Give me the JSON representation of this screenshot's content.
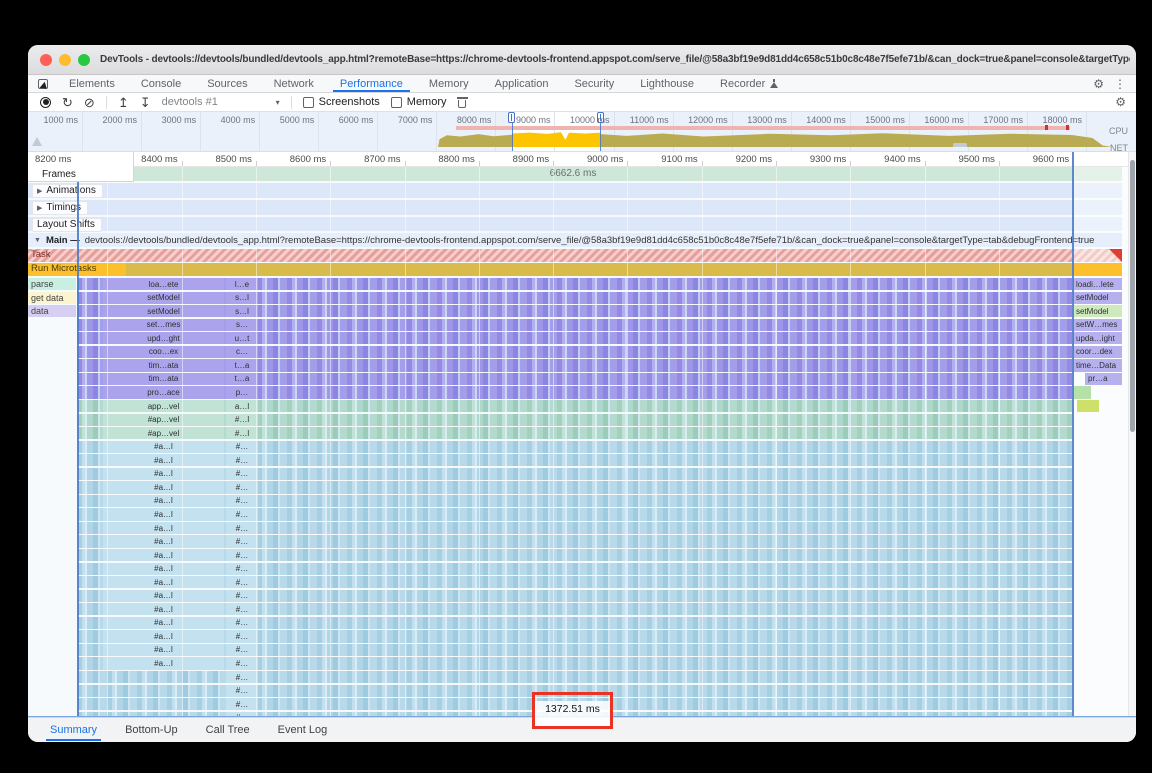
{
  "window": {
    "title": "DevTools - devtools://devtools/bundled/devtools_app.html?remoteBase=https://chrome-devtools-frontend.appspot.com/serve_file/@58a3bf19e9d81dd4c658c51b0c8c48e7f5efe71b/&can_dock=true&panel=console&targetType=tab&debugFrontend=true"
  },
  "tabs": {
    "items": [
      {
        "label": "Elements"
      },
      {
        "label": "Console"
      },
      {
        "label": "Sources"
      },
      {
        "label": "Network"
      },
      {
        "label": "Performance",
        "active": true
      },
      {
        "label": "Memory"
      },
      {
        "label": "Application"
      },
      {
        "label": "Security"
      },
      {
        "label": "Lighthouse"
      },
      {
        "label": "Recorder",
        "flask": true
      }
    ]
  },
  "toolbar": {
    "profile": "devtools #1",
    "screenshots_label": "Screenshots",
    "memory_label": "Memory"
  },
  "overview": {
    "tick_labels": [
      "1000 ms",
      "2000 ms",
      "3000 ms",
      "4000 ms",
      "5000 ms",
      "6000 ms",
      "7000 ms",
      "8000 ms",
      "9000 ms",
      "10000 ms",
      "11000 ms",
      "12000 ms",
      "13000 ms",
      "14000 ms",
      "15000 ms",
      "16000 ms",
      "17000 ms",
      "18000 ms"
    ],
    "lane_labels": [
      "CPU",
      "NET"
    ]
  },
  "ruler": {
    "labels": [
      "8200 ms",
      "8300 ms",
      "8400 ms",
      "8500 ms",
      "8600 ms",
      "8700 ms",
      "8800 ms",
      "8900 ms",
      "9000 ms",
      "9100 ms",
      "9200 ms",
      "9300 ms",
      "9400 ms",
      "9500 ms",
      "9600 ms"
    ]
  },
  "tracks": {
    "frames_label": "Frames",
    "frames_value": "6662.6 ms",
    "animations_label": "Animations",
    "timings_label": "Timings",
    "layout_shifts_label": "Layout Shifts",
    "main_label": "Main —",
    "main_url": "devtools://devtools/bundled/devtools_app.html?remoteBase=https://chrome-devtools-frontend.appspot.com/serve_file/@58a3bf19e9d81dd4c658c51b0c8c48e7f5efe71b/&can_dock=true&panel=console&targetType=tab&debugFrontend=true"
  },
  "flame": {
    "task_label": "Task",
    "microtasks_label": "Run Microtasks",
    "markers": [
      {
        "label": "parse",
        "bg": "#c9efe1"
      },
      {
        "label": "get data",
        "bg": "#fbf4d0"
      },
      {
        "label": "data",
        "bg": "#d6cff2"
      }
    ],
    "rows": [
      {
        "c1": "loa…ete",
        "c2": "l…e",
        "right": "loadi…lete",
        "p": "purple"
      },
      {
        "c1": "setModel",
        "c2": "s…l",
        "right": "setModel",
        "p": "purple"
      },
      {
        "c1": "setModel",
        "c2": "s…l",
        "right": "setModel",
        "right_green": true,
        "p": "purple"
      },
      {
        "c1": "set…mes",
        "c2": "s…",
        "right": "setW…mes",
        "p": "purple"
      },
      {
        "c1": "upd…ght",
        "c2": "u…t",
        "right": "upda…ight",
        "p": "purple"
      },
      {
        "c1": "coo…ex",
        "c2": "c…",
        "right": "coor…dex",
        "p": "purple"
      },
      {
        "c1": "tim…ata",
        "c2": "t…a",
        "right": "time…Data",
        "p": "purple"
      },
      {
        "c1": "tim…ata",
        "c2": "t…a",
        "right": "pr…a",
        "right_indent": true,
        "p": "purple"
      },
      {
        "c1": "pro…ace",
        "c2": "p…",
        "right_bar": "green",
        "p": "purple"
      },
      {
        "c1": "app…vel",
        "c2": "a…l",
        "right_bar": "lime",
        "p": "green"
      },
      {
        "c1": "#ap…vel",
        "c2": "#…l",
        "p": "green"
      },
      {
        "c1": "#ap…vel",
        "c2": "#…l",
        "p": "green"
      },
      {
        "c1": "#a…l",
        "c2": "#…",
        "p": "teal"
      },
      {
        "c1": "#a…l",
        "c2": "#…",
        "p": "teal"
      },
      {
        "c1": "#a…l",
        "c2": "#…",
        "p": "teal"
      },
      {
        "c1": "#a…l",
        "c2": "#…",
        "p": "teal"
      },
      {
        "c1": "#a…l",
        "c2": "#…",
        "p": "teal"
      },
      {
        "c1": "#a…l",
        "c2": "#…",
        "p": "teal"
      },
      {
        "c1": "#a…l",
        "c2": "#…",
        "p": "teal"
      },
      {
        "c1": "#a…l",
        "c2": "#…",
        "p": "teal"
      },
      {
        "c1": "#a…l",
        "c2": "#…",
        "p": "teal"
      },
      {
        "c1": "#a…l",
        "c2": "#…",
        "p": "teal"
      },
      {
        "c1": "#a…l",
        "c2": "#…",
        "p": "teal"
      },
      {
        "c1": "#a…l",
        "c2": "#…",
        "p": "teal"
      },
      {
        "c1": "#a…l",
        "c2": "#…",
        "p": "teal"
      },
      {
        "c1": "#a…l",
        "c2": "#…",
        "p": "teal"
      },
      {
        "c1": "#a…l",
        "c2": "#…",
        "p": "teal"
      },
      {
        "c1": "#a…l",
        "c2": "#…",
        "p": "teal"
      },
      {
        "c1": "#a…l",
        "c2": "#…",
        "p": "teal"
      },
      {
        "c2": "#…",
        "p": "teal"
      },
      {
        "c2": "#…",
        "p": "teal"
      },
      {
        "c2": "#…",
        "p": "teal"
      },
      {
        "c2": "#…",
        "p": "teal"
      }
    ]
  },
  "annotation": {
    "value": "1372.51 ms"
  },
  "bottom_tabs": {
    "items": [
      {
        "label": "Summary",
        "active": true
      },
      {
        "label": "Bottom-Up"
      },
      {
        "label": "Call Tree"
      },
      {
        "label": "Event Log"
      }
    ]
  },
  "colors": {
    "accent_blue": "#1a73e8",
    "task_red": "#e89f9b",
    "microtask_gold": "#fdc02d",
    "cpu_selected_yellow": "#fdc500",
    "cpu_dim_olive": "#b9ab52",
    "selection_blue": "#4272c9",
    "annotation_red": "#ea3323"
  }
}
